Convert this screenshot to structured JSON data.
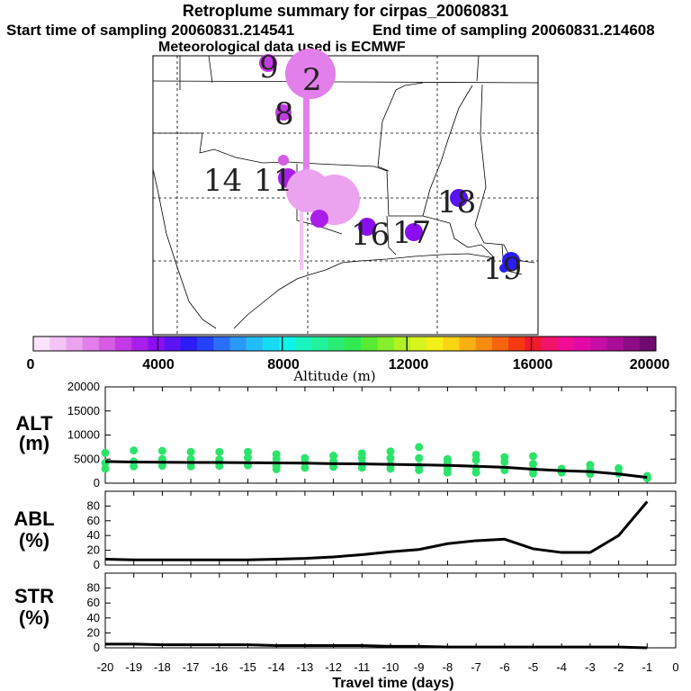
{
  "header": {
    "title": "Retroplume summary for cirpas_20060831",
    "start_label": "Start time of sampling 20060831.214541",
    "end_label": "End time of sampling 20060831.214608",
    "met_label": "Meteorological data used is ECMWF"
  },
  "colorbar": {
    "ticks": [
      "0",
      "4000",
      "8000",
      "12000",
      "16000",
      "20000"
    ],
    "label": "Altitude (m)",
    "range": [
      0,
      20000
    ],
    "colors": [
      "#fbe4fb",
      "#f4c4f6",
      "#eca3ef",
      "#e37fea",
      "#d65ce6",
      "#c43ae6",
      "#a91ee9",
      "#8a0ef0",
      "#5a14f4",
      "#2b1df7",
      "#2442fb",
      "#2a6efc",
      "#2b98fc",
      "#23bdfb",
      "#16ddf6",
      "#0ff4ea",
      "#1af5c0",
      "#22f29a",
      "#2aee74",
      "#30ea50",
      "#56ec32",
      "#84ef2a",
      "#b2f224",
      "#d8f31e",
      "#f4ef18",
      "#fad514",
      "#fab012",
      "#f98a10",
      "#f7640e",
      "#f43a10",
      "#f01a2e",
      "#f2136a",
      "#f00e94",
      "#e20aa6",
      "#c80da4",
      "#aa0e98",
      "#8c0c86",
      "#6e0a70"
    ]
  },
  "map_labels": [
    "9",
    "2",
    "8",
    "14",
    "11",
    "16",
    "17",
    "18",
    "19"
  ],
  "chart_data": [
    {
      "panel": "ALT",
      "type": "line",
      "ylabel": "ALT (m)",
      "yticks": [
        "0",
        "5000",
        "10000",
        "15000",
        "20000"
      ],
      "ylim": [
        0,
        20000
      ],
      "xlim": [
        -20,
        0
      ],
      "x": [
        -20,
        -19,
        -18,
        -17,
        -16,
        -15,
        -14,
        -13,
        -12,
        -11,
        -10,
        -9,
        -8,
        -7,
        -6,
        -5,
        -4,
        -3,
        -2,
        -1
      ],
      "values": [
        4500,
        4400,
        4350,
        4300,
        4300,
        4250,
        4200,
        4150,
        4050,
        4000,
        3900,
        3800,
        3700,
        3500,
        3300,
        2900,
        2600,
        2400,
        1900,
        1200
      ],
      "scatter_series": [
        {
          "name": "green",
          "x": -20,
          "values": [
            6300,
            4200,
            3000
          ]
        },
        {
          "name": "green",
          "x": -19,
          "values": [
            6800,
            4500,
            3500
          ]
        },
        {
          "name": "green",
          "x": -18,
          "values": [
            6700,
            5000,
            3600
          ]
        },
        {
          "name": "green",
          "x": -17,
          "values": [
            6500,
            5000,
            3500
          ]
        },
        {
          "name": "green",
          "x": -16,
          "values": [
            6500,
            4900,
            3600
          ]
        },
        {
          "name": "green",
          "x": -15,
          "values": [
            6500,
            5300,
            3700
          ]
        },
        {
          "name": "green",
          "x": -14,
          "values": [
            6000,
            5000,
            3600,
            2900
          ]
        },
        {
          "name": "green",
          "x": -13,
          "values": [
            5200,
            4300,
            3200
          ]
        },
        {
          "name": "green",
          "x": -12,
          "values": [
            5700,
            4600,
            3400
          ]
        },
        {
          "name": "green",
          "x": -11,
          "values": [
            6200,
            5200,
            4000,
            3200
          ]
        },
        {
          "name": "green",
          "x": -10,
          "values": [
            6600,
            5200,
            3800,
            3000
          ]
        },
        {
          "name": "green",
          "x": -9,
          "values": [
            7500,
            5200,
            3500,
            2700
          ]
        },
        {
          "name": "green",
          "x": -8,
          "values": [
            5000,
            4300,
            3000,
            2200
          ]
        },
        {
          "name": "green",
          "x": -7,
          "values": [
            5900,
            4800,
            3200,
            2200
          ]
        },
        {
          "name": "green",
          "x": -6,
          "values": [
            5400,
            4400,
            2700
          ]
        },
        {
          "name": "green",
          "x": -5,
          "values": [
            5600,
            4000,
            2800,
            2000
          ]
        },
        {
          "name": "green",
          "x": -4,
          "values": [
            3000,
            2200
          ]
        },
        {
          "name": "green",
          "x": -3,
          "values": [
            3800,
            2800,
            1900
          ]
        },
        {
          "name": "green",
          "x": -2,
          "values": [
            3100,
            2000
          ]
        },
        {
          "name": "green",
          "x": -1,
          "values": [
            1500,
            1000
          ]
        }
      ]
    },
    {
      "panel": "ABL",
      "type": "line",
      "ylabel": "ABL (%)",
      "yticks": [
        "0",
        "20",
        "40",
        "60",
        "80"
      ],
      "ylim": [
        0,
        100
      ],
      "xlim": [
        -20,
        0
      ],
      "x": [
        -20,
        -19,
        -18,
        -17,
        -16,
        -15,
        -14,
        -13,
        -12,
        -11,
        -10,
        -9,
        -8,
        -7,
        -6,
        -5,
        -4,
        -3,
        -2,
        -1
      ],
      "values": [
        8,
        7,
        7,
        7,
        7,
        7,
        8,
        9,
        11,
        14,
        18,
        21,
        29,
        33,
        35,
        22,
        17,
        17,
        40,
        86
      ]
    },
    {
      "panel": "STR",
      "type": "line",
      "ylabel": "STR (%)",
      "yticks": [
        "0",
        "20",
        "40",
        "60",
        "80"
      ],
      "ylim": [
        0,
        100
      ],
      "xlim": [
        -20,
        0
      ],
      "x": [
        -20,
        -19,
        -18,
        -17,
        -16,
        -15,
        -14,
        -13,
        -12,
        -11,
        -10,
        -9,
        -8,
        -7,
        -6,
        -5,
        -4,
        -3,
        -2,
        -1
      ],
      "values": [
        5,
        5,
        4,
        4,
        4,
        4,
        3,
        3,
        3,
        3,
        2,
        2,
        1,
        1,
        1,
        1,
        1,
        1,
        1,
        0
      ]
    }
  ],
  "xaxis": {
    "ticks": [
      "-20",
      "-19",
      "-18",
      "-17",
      "-16",
      "-15",
      "-14",
      "-13",
      "-12",
      "-11",
      "-10",
      "-9",
      "-8",
      "-7",
      "-6",
      "-5",
      "-4",
      "-3",
      "-2",
      "-1",
      "0"
    ],
    "label": "Travel time (days)"
  },
  "panel_labels": {
    "alt_top": "ALT",
    "alt_bottom": "(m)",
    "abl_top": "ABL",
    "abl_bottom": "(%)",
    "str_top": "STR",
    "str_bottom": "(%)"
  }
}
